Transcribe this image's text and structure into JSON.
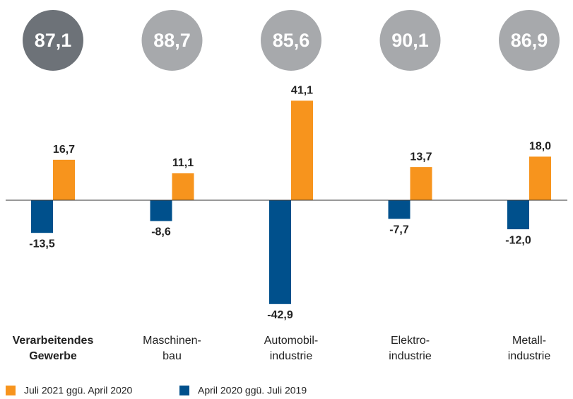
{
  "chart_data": {
    "type": "bar",
    "categories": [
      [
        "Verarbeitendes",
        "Gewerbe"
      ],
      [
        "Maschinen-",
        "bau"
      ],
      [
        "Automobil-",
        "industrie"
      ],
      [
        "Elektro-",
        "industrie"
      ],
      [
        "Metall-",
        "industrie"
      ]
    ],
    "series": [
      {
        "name": "Juli 2021 ggü. April 2020",
        "color": "#f7941d",
        "values": [
          16.7,
          11.1,
          41.1,
          13.7,
          18.0
        ],
        "value_labels": [
          "16,7",
          "11,1",
          "41,1",
          "13,7",
          "18,0"
        ]
      },
      {
        "name": "April 2020 ggü. Juli 2019",
        "color": "#00508c",
        "values": [
          -13.5,
          -8.6,
          -42.9,
          -7.7,
          -12.0
        ],
        "value_labels": [
          "-13,5",
          "-8,6",
          "-42,9",
          "-7,7",
          "-12,0"
        ]
      }
    ],
    "badge_values": [
      87.1,
      88.7,
      85.6,
      90.1,
      86.9
    ],
    "badge_labels": [
      "87,1",
      "88,7",
      "85,6",
      "90,1",
      "86,9"
    ],
    "badge_colors": [
      "#6d7278",
      "#a7a9ac",
      "#a7a9ac",
      "#a7a9ac",
      "#a7a9ac"
    ],
    "ylim": [
      -45,
      45
    ]
  }
}
